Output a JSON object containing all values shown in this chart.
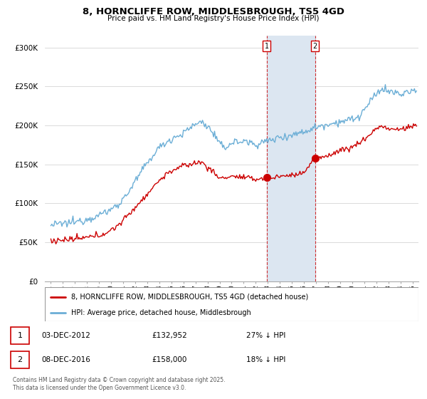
{
  "title": "8, HORNCLIFFE ROW, MIDDLESBROUGH, TS5 4GD",
  "subtitle": "Price paid vs. HM Land Registry's House Price Index (HPI)",
  "legend_line1": "8, HORNCLIFFE ROW, MIDDLESBROUGH, TS5 4GD (detached house)",
  "legend_line2": "HPI: Average price, detached house, Middlesbrough",
  "transaction1_date": "03-DEC-2012",
  "transaction1_price": "£132,952",
  "transaction1_hpi": "27% ↓ HPI",
  "transaction2_date": "08-DEC-2016",
  "transaction2_price": "£158,000",
  "transaction2_hpi": "18% ↓ HPI",
  "footnote": "Contains HM Land Registry data © Crown copyright and database right 2025.\nThis data is licensed under the Open Government Licence v3.0.",
  "hpi_color": "#6baed6",
  "property_color": "#cc0000",
  "shading_color": "#dce6f1",
  "ylim": [
    0,
    315000
  ],
  "yticks": [
    0,
    50000,
    100000,
    150000,
    200000,
    250000,
    300000
  ],
  "transaction1_x": 2012.92,
  "transaction1_y": 132952,
  "transaction2_x": 2016.93,
  "transaction2_y": 158000,
  "shade_x1": 2012.92,
  "shade_x2": 2016.93,
  "xlim_left": 1994.5,
  "xlim_right": 2025.5
}
